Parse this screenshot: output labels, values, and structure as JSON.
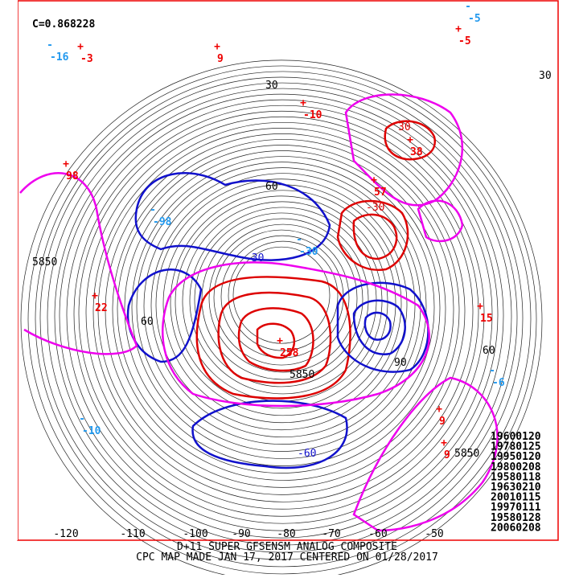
{
  "header": {
    "correlation": "C=0.868228"
  },
  "footer": {
    "line1": "D+11 SUPER GFSENSM ANALOG COMPOSITE",
    "line2": "CPC MAP MADE JAN 17, 2017 CENTERED ON 01/28/2017"
  },
  "analog_dates": [
    "19600120",
    "19780125",
    "19950120",
    "19800208",
    "19580118",
    "19630210",
    "20010115",
    "19970111",
    "19580128",
    "20060208"
  ],
  "longitude_labels": [
    "-120",
    "-110",
    "-100",
    "-90",
    "-80",
    "-70",
    "-60",
    "-50"
  ],
  "contour_labels": [
    "5850",
    "5850",
    "5850",
    "60",
    "60",
    "90",
    "30",
    "-30",
    "30",
    "-30",
    "-60",
    "60",
    "30"
  ],
  "markers": [
    {
      "sign": "+",
      "label": "-3"
    },
    {
      "sign": "+",
      "label": "9"
    },
    {
      "sign": "+",
      "label": "-5"
    },
    {
      "sign": "+",
      "label": "-10"
    },
    {
      "sign": "+",
      "label": "38"
    },
    {
      "sign": "+",
      "label": "57"
    },
    {
      "sign": "+",
      "label": "98"
    },
    {
      "sign": "+",
      "label": "22"
    },
    {
      "sign": "+",
      "label": "15"
    },
    {
      "sign": "+",
      "label": "9"
    },
    {
      "sign": "+",
      "label": "9"
    },
    {
      "sign": "+",
      "label": "258"
    },
    {
      "sign": "-",
      "label": "-5"
    },
    {
      "sign": "-",
      "label": "-16"
    },
    {
      "sign": "-",
      "label": "-30"
    },
    {
      "sign": "-",
      "label": "-10"
    },
    {
      "sign": "-",
      "label": "-6"
    },
    {
      "sign": "-",
      "label": "-98"
    }
  ]
}
